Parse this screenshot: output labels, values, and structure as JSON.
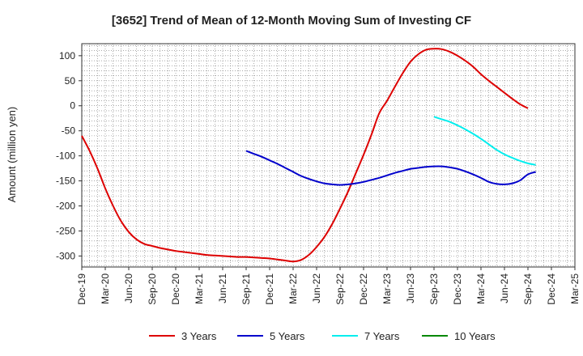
{
  "chart_data": {
    "type": "line",
    "title": "[3652]  Trend of Mean of 12-Month Moving Sum of Investing CF",
    "ylabel": "Amount (million yen)",
    "xlabel": "",
    "ylim": [
      -322,
      124
    ],
    "yticks": [
      100,
      50,
      0,
      -50,
      -100,
      -150,
      -200,
      -250,
      -300
    ],
    "xlim": [
      "2019-12",
      "2025-03"
    ],
    "xticks": [
      "Dec-19",
      "Mar-20",
      "Jun-20",
      "Sep-20",
      "Dec-20",
      "Mar-21",
      "Jun-21",
      "Sep-21",
      "Dec-21",
      "Mar-22",
      "Jun-22",
      "Sep-22",
      "Dec-22",
      "Mar-23",
      "Jun-23",
      "Sep-23",
      "Dec-23",
      "Mar-24",
      "Jun-24",
      "Sep-24",
      "Dec-24",
      "Mar-25"
    ],
    "grid": true,
    "legend_position": "bottom",
    "series": [
      {
        "name": "3 Years",
        "color": "#dd0000",
        "points": [
          [
            "2019-12",
            -60
          ],
          [
            "2020-01",
            -90
          ],
          [
            "2020-02",
            -125
          ],
          [
            "2020-03",
            -165
          ],
          [
            "2020-04",
            -200
          ],
          [
            "2020-05",
            -230
          ],
          [
            "2020-06",
            -252
          ],
          [
            "2020-07",
            -267
          ],
          [
            "2020-08",
            -276
          ],
          [
            "2020-09",
            -280
          ],
          [
            "2020-10",
            -284
          ],
          [
            "2020-11",
            -287
          ],
          [
            "2020-12",
            -290
          ],
          [
            "2021-01",
            -292
          ],
          [
            "2021-02",
            -294
          ],
          [
            "2021-03",
            -296
          ],
          [
            "2021-04",
            -298
          ],
          [
            "2021-05",
            -299
          ],
          [
            "2021-06",
            -300
          ],
          [
            "2021-07",
            -301
          ],
          [
            "2021-08",
            -302
          ],
          [
            "2021-09",
            -302
          ],
          [
            "2021-10",
            -303
          ],
          [
            "2021-11",
            -304
          ],
          [
            "2021-12",
            -305
          ],
          [
            "2022-01",
            -307
          ],
          [
            "2022-02",
            -309
          ],
          [
            "2022-03",
            -311
          ],
          [
            "2022-04",
            -308
          ],
          [
            "2022-05",
            -298
          ],
          [
            "2022-06",
            -282
          ],
          [
            "2022-07",
            -262
          ],
          [
            "2022-08",
            -236
          ],
          [
            "2022-09",
            -205
          ],
          [
            "2022-10",
            -172
          ],
          [
            "2022-11",
            -135
          ],
          [
            "2022-12",
            -98
          ],
          [
            "2023-01",
            -58
          ],
          [
            "2023-02",
            -15
          ],
          [
            "2023-03",
            10
          ],
          [
            "2023-04",
            38
          ],
          [
            "2023-05",
            65
          ],
          [
            "2023-06",
            88
          ],
          [
            "2023-07",
            103
          ],
          [
            "2023-08",
            112
          ],
          [
            "2023-09",
            114
          ],
          [
            "2023-10",
            113
          ],
          [
            "2023-11",
            108
          ],
          [
            "2023-12",
            100
          ],
          [
            "2024-01",
            90
          ],
          [
            "2024-02",
            78
          ],
          [
            "2024-03",
            63
          ],
          [
            "2024-04",
            50
          ],
          [
            "2024-05",
            38
          ],
          [
            "2024-06",
            26
          ],
          [
            "2024-07",
            14
          ],
          [
            "2024-08",
            3
          ],
          [
            "2024-09",
            -5
          ]
        ]
      },
      {
        "name": "5 Years",
        "color": "#0000cc",
        "points": [
          [
            "2021-09",
            -90
          ],
          [
            "2021-10",
            -96
          ],
          [
            "2021-11",
            -102
          ],
          [
            "2021-12",
            -109
          ],
          [
            "2022-01",
            -116
          ],
          [
            "2022-02",
            -124
          ],
          [
            "2022-03",
            -132
          ],
          [
            "2022-04",
            -140
          ],
          [
            "2022-05",
            -146
          ],
          [
            "2022-06",
            -151
          ],
          [
            "2022-07",
            -155
          ],
          [
            "2022-08",
            -157
          ],
          [
            "2022-09",
            -158
          ],
          [
            "2022-10",
            -157
          ],
          [
            "2022-11",
            -155
          ],
          [
            "2022-12",
            -152
          ],
          [
            "2023-01",
            -148
          ],
          [
            "2023-02",
            -144
          ],
          [
            "2023-03",
            -139
          ],
          [
            "2023-04",
            -134
          ],
          [
            "2023-05",
            -130
          ],
          [
            "2023-06",
            -126
          ],
          [
            "2023-07",
            -124
          ],
          [
            "2023-08",
            -122
          ],
          [
            "2023-09",
            -121
          ],
          [
            "2023-10",
            -121
          ],
          [
            "2023-11",
            -123
          ],
          [
            "2023-12",
            -126
          ],
          [
            "2024-01",
            -131
          ],
          [
            "2024-02",
            -137
          ],
          [
            "2024-03",
            -144
          ],
          [
            "2024-04",
            -152
          ],
          [
            "2024-05",
            -156
          ],
          [
            "2024-06",
            -157
          ],
          [
            "2024-07",
            -155
          ],
          [
            "2024-08",
            -149
          ],
          [
            "2024-09",
            -137
          ],
          [
            "2024-10",
            -132
          ]
        ]
      },
      {
        "name": "7 Years",
        "color": "#00eeee",
        "points": [
          [
            "2023-09",
            -22
          ],
          [
            "2023-10",
            -27
          ],
          [
            "2023-11",
            -32
          ],
          [
            "2023-12",
            -39
          ],
          [
            "2024-01",
            -47
          ],
          [
            "2024-02",
            -56
          ],
          [
            "2024-03",
            -66
          ],
          [
            "2024-04",
            -77
          ],
          [
            "2024-05",
            -88
          ],
          [
            "2024-06",
            -97
          ],
          [
            "2024-07",
            -104
          ],
          [
            "2024-08",
            -110
          ],
          [
            "2024-09",
            -115
          ],
          [
            "2024-10",
            -118
          ]
        ]
      },
      {
        "name": "10 Years",
        "color": "#008800",
        "points": []
      }
    ]
  }
}
